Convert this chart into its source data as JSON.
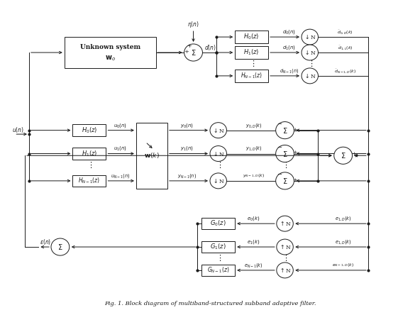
{
  "fig_width": 5.92,
  "fig_height": 4.44,
  "dpi": 100,
  "bg_color": "#ffffff",
  "line_color": "#1a1a1a",
  "box_color": "#ffffff",
  "text_color": "#1a1a1a",
  "title": "Fig. 1. Block diagram of multiband-structured subband adaptive filter."
}
